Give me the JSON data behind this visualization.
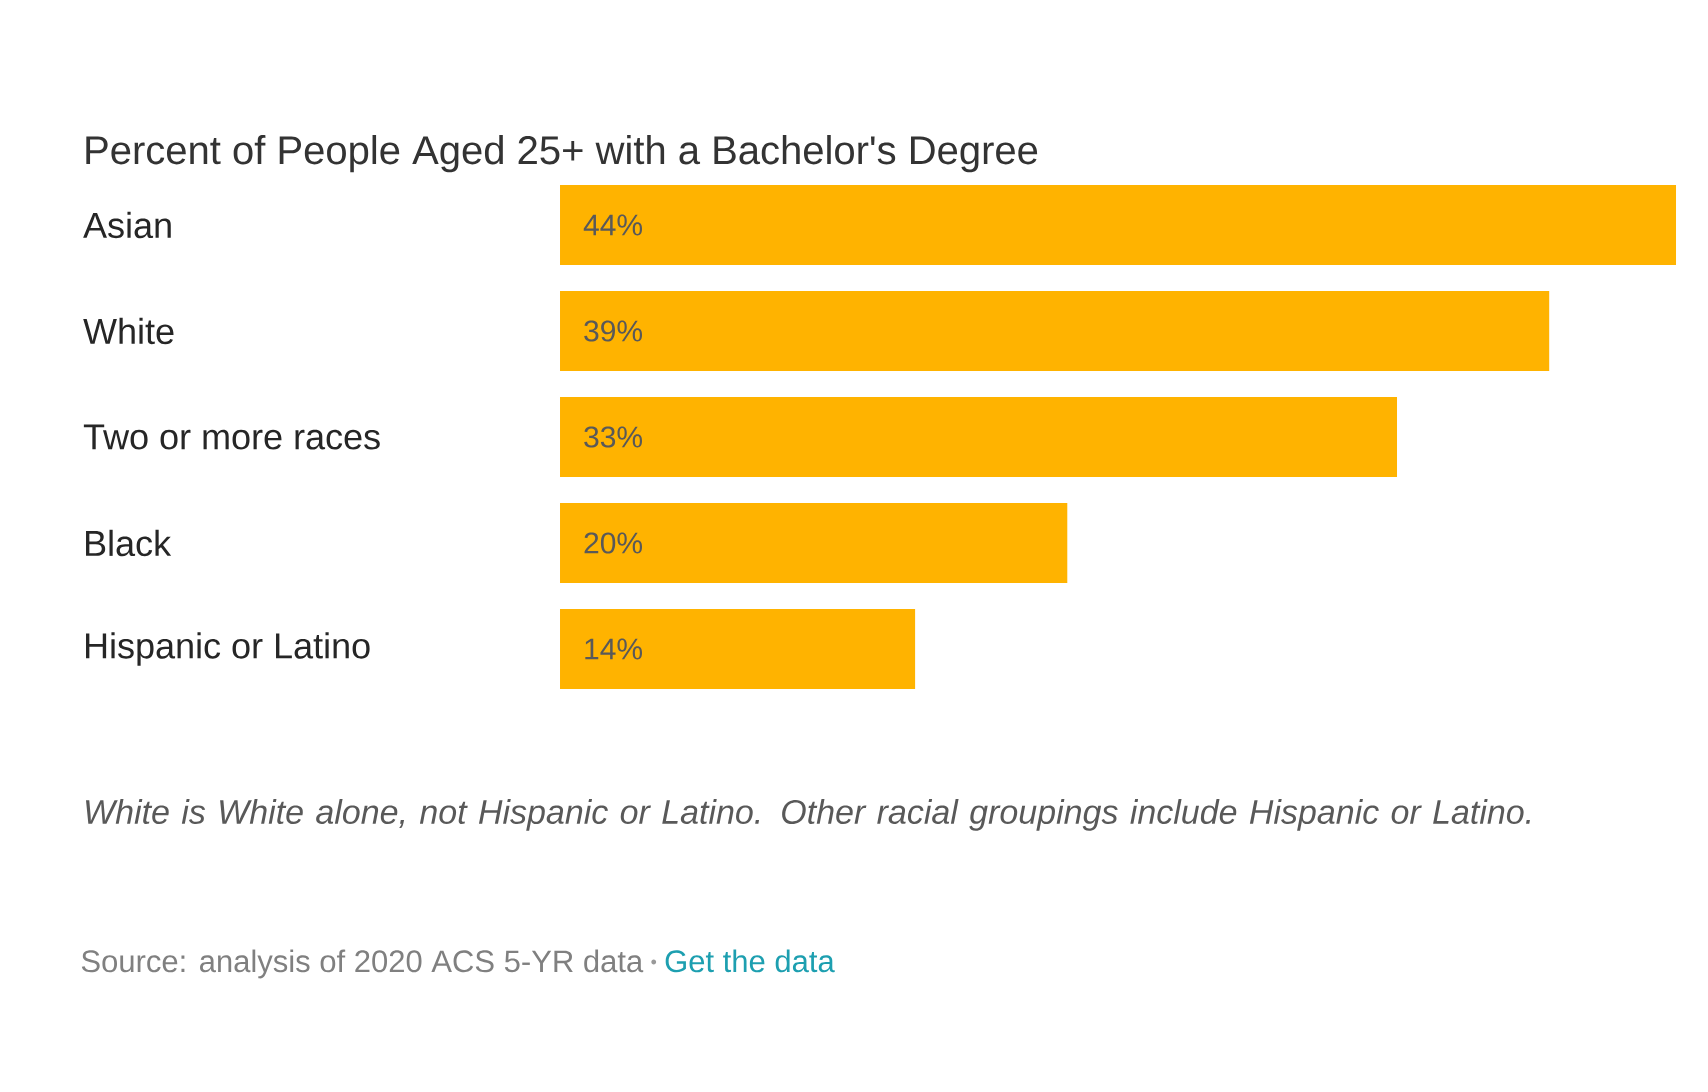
{
  "chart_data": {
    "type": "bar",
    "orientation": "horizontal",
    "title": "Percent of People Aged 25+ with a Bachelor's Degree",
    "categories": [
      "Asian",
      "White",
      "Two or more races",
      "Black",
      "Hispanic or Latino"
    ],
    "values": [
      44,
      39,
      33,
      20,
      14
    ],
    "value_labels": [
      "44%",
      "39%",
      "33%",
      "20%",
      "14%"
    ],
    "color": "#ffb300",
    "annotations": [
      "White is White alone, not Hispanic or Latino. Other racial groupings include Hispanic or Latino.",
      "Source: analysis of 2020 ACS 5-YR data",
      "Get the data"
    ]
  }
}
